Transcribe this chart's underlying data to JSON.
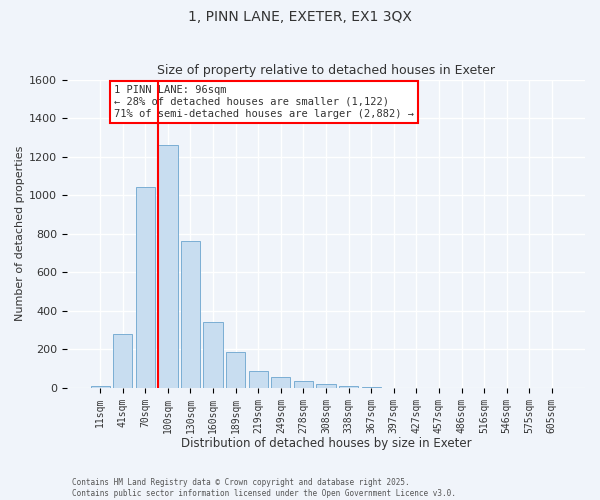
{
  "title": "1, PINN LANE, EXETER, EX1 3QX",
  "subtitle": "Size of property relative to detached houses in Exeter",
  "xlabel": "Distribution of detached houses by size in Exeter",
  "ylabel": "Number of detached properties",
  "bar_labels": [
    "11sqm",
    "41sqm",
    "70sqm",
    "100sqm",
    "130sqm",
    "160sqm",
    "189sqm",
    "219sqm",
    "249sqm",
    "278sqm",
    "308sqm",
    "338sqm",
    "367sqm",
    "397sqm",
    "427sqm",
    "457sqm",
    "486sqm",
    "516sqm",
    "546sqm",
    "575sqm",
    "605sqm"
  ],
  "bar_values": [
    10,
    280,
    1040,
    1260,
    760,
    340,
    185,
    85,
    55,
    35,
    22,
    10,
    3,
    1,
    0,
    0,
    0,
    0,
    0,
    0,
    0
  ],
  "bar_color": "#c8ddf0",
  "bar_edge_color": "#7aaed4",
  "vline_bar_index": 3,
  "vline_color": "red",
  "annotation_title": "1 PINN LANE: 96sqm",
  "annotation_line1": "← 28% of detached houses are smaller (1,122)",
  "annotation_line2": "71% of semi-detached houses are larger (2,882) →",
  "annotation_box_color": "white",
  "annotation_box_edge": "red",
  "ylim": [
    0,
    1600
  ],
  "yticks": [
    0,
    200,
    400,
    600,
    800,
    1000,
    1200,
    1400,
    1600
  ],
  "footer1": "Contains HM Land Registry data © Crown copyright and database right 2025.",
  "footer2": "Contains public sector information licensed under the Open Government Licence v3.0.",
  "background_color": "#f0f4fa",
  "grid_color": "white",
  "title_fontsize": 10,
  "subtitle_fontsize": 9
}
